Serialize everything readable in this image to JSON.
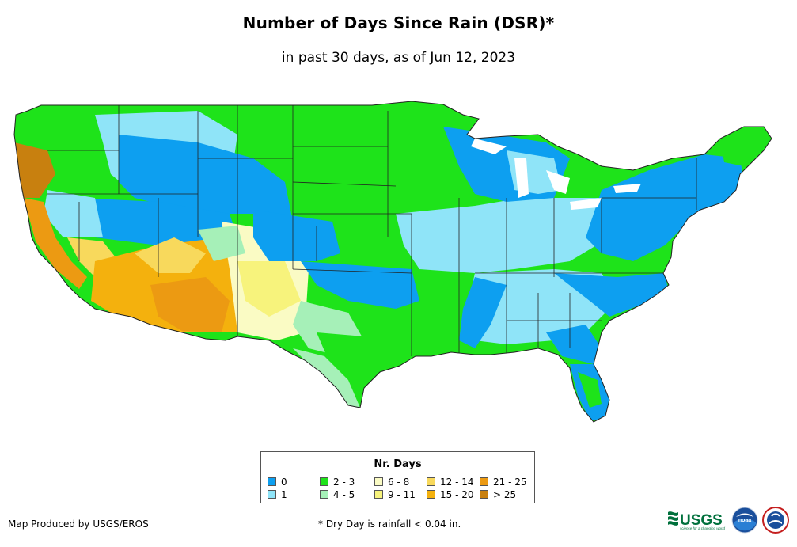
{
  "title": "Number of Days Since Rain (DSR)*",
  "subtitle": "in past 30 days, as of Jun 12, 2023",
  "legend": {
    "title": "Nr. Days",
    "items": [
      {
        "label": "0",
        "color": "#0d9ff0"
      },
      {
        "label": "1",
        "color": "#8fe4f8"
      },
      {
        "label": "2 - 3",
        "color": "#1ee31a"
      },
      {
        "label": "4 - 5",
        "color": "#a6f0b8"
      },
      {
        "label": "6 - 8",
        "color": "#fafbc4"
      },
      {
        "label": "9 - 11",
        "color": "#f7f37c"
      },
      {
        "label": "12 - 14",
        "color": "#f8d95c"
      },
      {
        "label": "15 - 20",
        "color": "#f4b10d"
      },
      {
        "label": "21 - 25",
        "color": "#ec9a12"
      },
      {
        "label": "> 25",
        "color": "#c8800f"
      }
    ]
  },
  "credit": "Map Produced by USGS/EROS",
  "footnote": "* Dry Day is rainfall < 0.04 in.",
  "logos": {
    "usgs_text": "USGS",
    "usgs_tagline": "science for a changing world",
    "noaa_text": "noaa"
  }
}
